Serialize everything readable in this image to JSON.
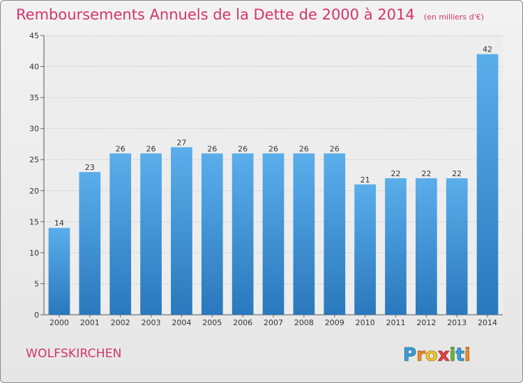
{
  "title": "Remboursements Annuels de la Dette de 2000 à 2014",
  "unit": "(en milliers d'€)",
  "commune": "WOLFSKIRCHEN",
  "logo_text": "Proxiti",
  "colors": {
    "title": "#d6336c",
    "bar_top": "#5aaeea",
    "bar_bottom": "#2a78bd",
    "grid": "#c9c9c9",
    "axis_text": "#333333"
  },
  "chart_data": {
    "type": "bar",
    "categories": [
      "2000",
      "2001",
      "2002",
      "2003",
      "2004",
      "2005",
      "2006",
      "2007",
      "2008",
      "2009",
      "2010",
      "2011",
      "2012",
      "2013",
      "2014"
    ],
    "values": [
      14,
      23,
      26,
      26,
      27,
      26,
      26,
      26,
      26,
      26,
      21,
      22,
      22,
      22,
      42
    ],
    "ylim": [
      0,
      45
    ],
    "yticks": [
      0,
      5,
      10,
      15,
      20,
      25,
      30,
      35,
      40,
      45
    ],
    "grid": true,
    "data_labels": true
  }
}
